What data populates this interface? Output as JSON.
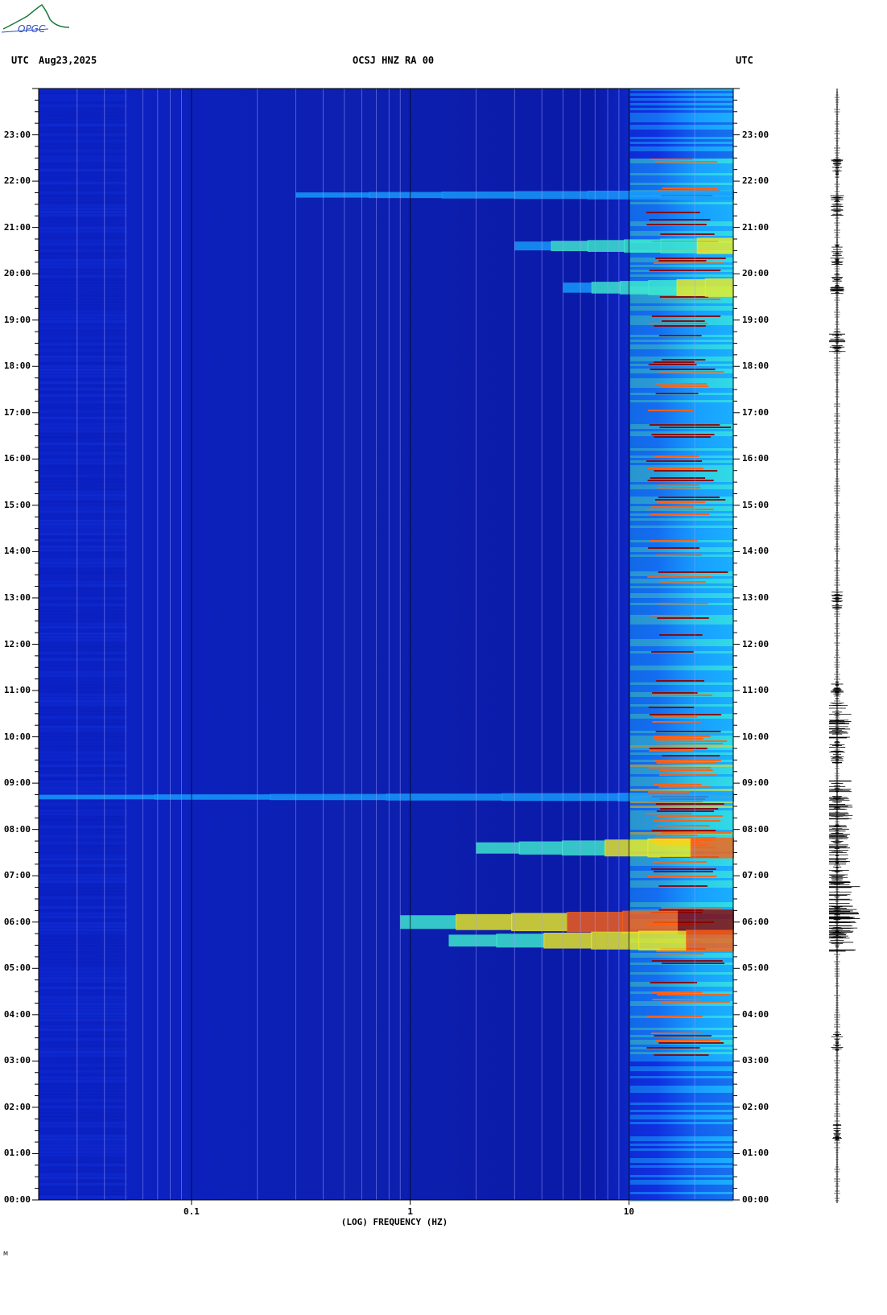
{
  "header": {
    "left_label": "UTC",
    "date": "Aug23,2025",
    "station": "OCSJ HNZ RA 00",
    "right_label": "UTC"
  },
  "logo": {
    "text": "OPGC",
    "color": "#1a7a3a"
  },
  "footer_mark": "M",
  "chart_data": {
    "type": "heatmap",
    "title": "OCSJ HNZ RA 00",
    "xlabel": "(LOG) FREQUENCY (HZ)",
    "ylabel": "",
    "x_scale": "log",
    "xlim": [
      0.02,
      30
    ],
    "x_ticks": [
      {
        "value": 0.1,
        "label": "0.1"
      },
      {
        "value": 1,
        "label": "1"
      },
      {
        "value": 10,
        "label": "10"
      }
    ],
    "y_ticks_left": [
      "00:00",
      "01:00",
      "02:00",
      "03:00",
      "04:00",
      "05:00",
      "06:00",
      "07:00",
      "08:00",
      "09:00",
      "10:00",
      "11:00",
      "12:00",
      "13:00",
      "14:00",
      "15:00",
      "16:00",
      "17:00",
      "18:00",
      "19:00",
      "20:00",
      "21:00",
      "22:00",
      "23:00"
    ],
    "y_ticks_right": [
      "00:00",
      "01:00",
      "02:00",
      "03:00",
      "04:00",
      "05:00",
      "06:00",
      "07:00",
      "08:00",
      "09:00",
      "10:00",
      "11:00",
      "12:00",
      "13:00",
      "14:00",
      "15:00",
      "16:00",
      "17:00",
      "18:00",
      "19:00",
      "20:00",
      "21:00",
      "22:00",
      "23:00"
    ],
    "ylim_hours": [
      0,
      24
    ],
    "colormap": [
      "#0a1aa8",
      "#1030e0",
      "#18a0ff",
      "#40f0d0",
      "#f0f020",
      "#ff6010",
      "#8b0000"
    ],
    "high_energy_band_hz": [
      12,
      30
    ],
    "events": [
      {
        "hour": 6.0,
        "from_hz": 0.9,
        "intensity": 1.0
      },
      {
        "hour": 5.6,
        "from_hz": 1.5,
        "intensity": 0.85
      },
      {
        "hour": 7.6,
        "from_hz": 2.0,
        "intensity": 0.8
      },
      {
        "hour": 19.7,
        "from_hz": 5.0,
        "intensity": 0.7
      },
      {
        "hour": 20.6,
        "from_hz": 3.0,
        "intensity": 0.6
      },
      {
        "hour": 21.7,
        "from_hz": 0.3,
        "intensity": 0.3
      },
      {
        "hour": 8.7,
        "from_hz": 0.02,
        "intensity": 0.25
      }
    ],
    "seismogram_bursts": [
      {
        "hour": 6.3,
        "amp": 1.0
      },
      {
        "hour": 5.9,
        "amp": 0.8
      },
      {
        "hour": 7.2,
        "amp": 0.6
      },
      {
        "hour": 7.8,
        "amp": 0.55
      },
      {
        "hour": 8.7,
        "amp": 0.7
      },
      {
        "hour": 10.4,
        "amp": 0.6
      },
      {
        "hour": 9.7,
        "amp": 0.35
      },
      {
        "hour": 11.0,
        "amp": 0.3
      },
      {
        "hour": 13.0,
        "amp": 0.25
      },
      {
        "hour": 18.5,
        "amp": 0.35
      },
      {
        "hour": 19.8,
        "amp": 0.3
      },
      {
        "hour": 20.4,
        "amp": 0.3
      },
      {
        "hour": 21.5,
        "amp": 0.3
      },
      {
        "hour": 22.3,
        "amp": 0.25
      },
      {
        "hour": 3.5,
        "amp": 0.25
      },
      {
        "hour": 1.5,
        "amp": 0.2
      }
    ]
  }
}
